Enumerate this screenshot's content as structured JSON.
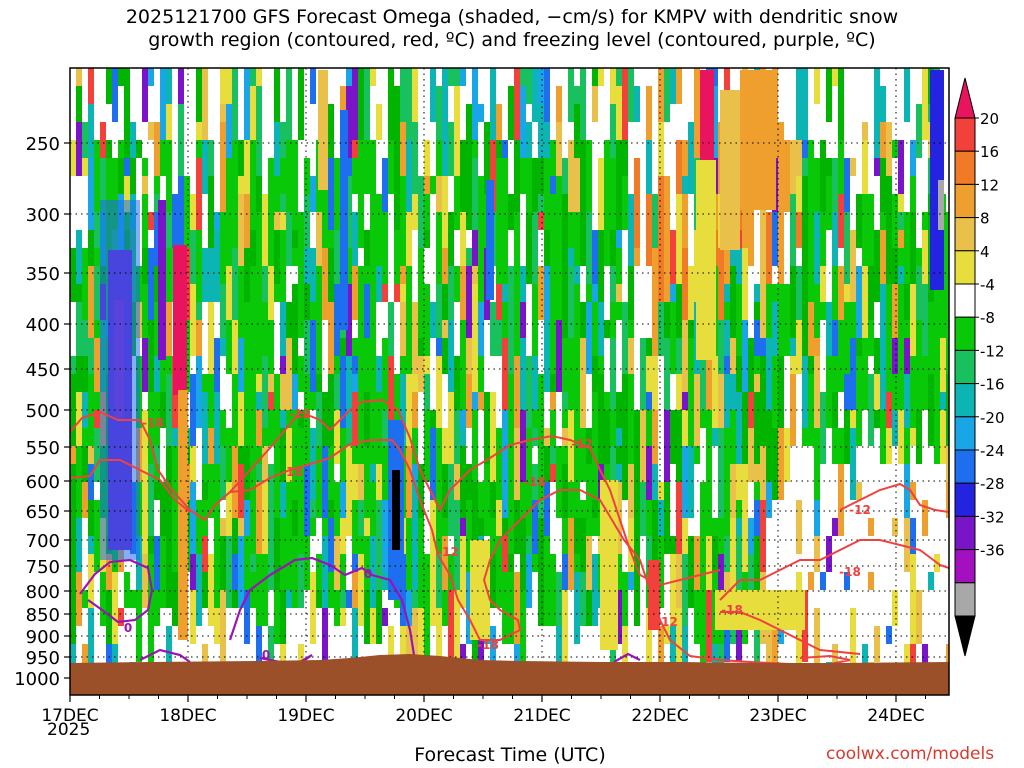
{
  "chart_data": {
    "type": "heatmap",
    "title_lines": [
      "2025121700 GFS Forecast Omega (shaded, −cm/s) for KMPV with dendritic snow",
      "growth region (contoured, red, ºC) and freezing level (contoured, purple, ºC)"
    ],
    "xlabel": "Forecast Time (UTC)",
    "x_ticks": [
      "17DEC",
      "18DEC",
      "19DEC",
      "20DEC",
      "21DEC",
      "22DEC",
      "23DEC",
      "24DEC"
    ],
    "x_year": "2025",
    "y_ticks": [
      "250",
      "300",
      "350",
      "400",
      "450",
      "500",
      "550",
      "600",
      "650",
      "700",
      "750",
      "800",
      "850",
      "900",
      "950",
      "1000"
    ],
    "y_axis": "pressure (hPa), log scale, reversed",
    "ylim": [
      1000,
      200
    ],
    "grid": "dotted",
    "colorbar": {
      "labels": [
        "20",
        "16",
        "12",
        "8",
        "4",
        "-4",
        "-8",
        "-12",
        "-16",
        "-20",
        "-24",
        "-28",
        "-32",
        "-36"
      ],
      "colors": [
        "#e8155e",
        "#f2403a",
        "#f07a25",
        "#ee9f2e",
        "#e8c04a",
        "#e7de3d",
        "#ffffff",
        "#08c808",
        "#18c05e",
        "#0cb4b4",
        "#18a6e6",
        "#1e6ef0",
        "#2424e0",
        "#7a14c8",
        "#a210c0",
        "#a8a8a8",
        "#000000"
      ]
    },
    "contour_labels": {
      "dendritic_red": [
        "-18",
        "-12",
        "-18",
        "-12",
        "-18",
        "-12",
        "-18",
        "-12",
        "-18",
        "-12",
        "-18",
        "-12",
        "-18",
        "-12"
      ],
      "freezing_purple": [
        "0",
        "0",
        "0"
      ]
    },
    "watermark": "coolwx.com/models"
  }
}
